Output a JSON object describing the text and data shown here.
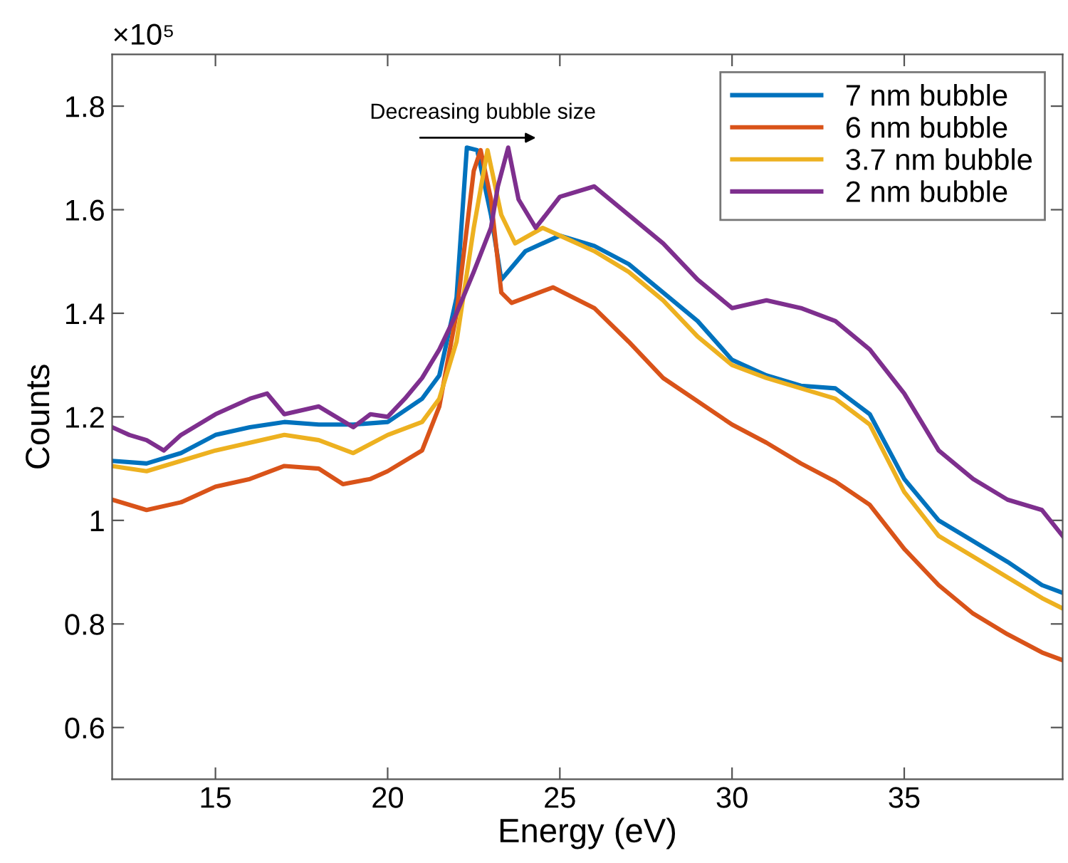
{
  "chart_data": {
    "type": "line",
    "xlabel": "Energy (eV)",
    "ylabel": "Counts",
    "xlim": [
      12,
      39.6
    ],
    "ylim": [
      0.5,
      1.9
    ],
    "xticks": [
      15,
      20,
      25,
      30,
      35
    ],
    "yticks": [
      0.6,
      0.8,
      1,
      1.2,
      1.4,
      1.6,
      1.8
    ],
    "grid": false,
    "legend": "top right",
    "marker": "none",
    "line_style": "solid",
    "annotations": [
      "×10⁵",
      "Decreasing bubble size"
    ],
    "series": [
      {
        "name": "7 nm bubble",
        "color": "#0072bd",
        "x": [
          12,
          13,
          14,
          15,
          16,
          17,
          18,
          19,
          20,
          21,
          21.5,
          22,
          22.3,
          22.6,
          23,
          23.3,
          24,
          25,
          26,
          27,
          28,
          29,
          30,
          31,
          32,
          33,
          34,
          35,
          36,
          37,
          38,
          39,
          39.6
        ],
        "values": [
          1.115,
          1.11,
          1.13,
          1.165,
          1.18,
          1.19,
          1.185,
          1.185,
          1.19,
          1.235,
          1.28,
          1.43,
          1.72,
          1.715,
          1.59,
          1.465,
          1.52,
          1.55,
          1.53,
          1.495,
          1.44,
          1.385,
          1.31,
          1.28,
          1.26,
          1.255,
          1.205,
          1.08,
          1.0,
          0.96,
          0.92,
          0.875,
          0.86
        ]
      },
      {
        "name": "6 nm bubble",
        "color": "#d95319",
        "x": [
          12,
          13,
          14,
          15,
          16,
          17,
          18,
          18.7,
          19.5,
          20,
          21,
          21.5,
          22,
          22.5,
          22.7,
          23,
          23.3,
          23.6,
          24,
          24.8,
          26,
          27,
          28,
          29,
          30,
          31,
          32,
          33,
          34,
          35,
          36,
          37,
          38,
          39,
          39.6
        ],
        "values": [
          1.04,
          1.02,
          1.035,
          1.065,
          1.08,
          1.105,
          1.1,
          1.07,
          1.08,
          1.095,
          1.135,
          1.22,
          1.4,
          1.675,
          1.715,
          1.62,
          1.44,
          1.42,
          1.43,
          1.45,
          1.41,
          1.345,
          1.275,
          1.23,
          1.185,
          1.15,
          1.11,
          1.075,
          1.03,
          0.945,
          0.875,
          0.82,
          0.78,
          0.745,
          0.73
        ]
      },
      {
        "name": "3.7 nm bubble",
        "color": "#edb120",
        "x": [
          12,
          13,
          14,
          15,
          16,
          17,
          18,
          19,
          20,
          21,
          21.5,
          22,
          22.5,
          22.9,
          23.3,
          23.7,
          24.5,
          25,
          26,
          27,
          28,
          29,
          30,
          31,
          32,
          33,
          34,
          35,
          36,
          37,
          38,
          39,
          39.6
        ],
        "values": [
          1.105,
          1.095,
          1.115,
          1.135,
          1.15,
          1.165,
          1.155,
          1.13,
          1.165,
          1.19,
          1.235,
          1.345,
          1.565,
          1.715,
          1.59,
          1.535,
          1.565,
          1.55,
          1.52,
          1.48,
          1.425,
          1.355,
          1.3,
          1.275,
          1.255,
          1.235,
          1.185,
          1.055,
          0.97,
          0.93,
          0.89,
          0.85,
          0.83
        ]
      },
      {
        "name": "2 nm bubble",
        "color": "#7e2f8e",
        "x": [
          12,
          12.5,
          13,
          13.5,
          14,
          15,
          16,
          16.5,
          17,
          18,
          19,
          19.5,
          20,
          20.5,
          21,
          21.5,
          22,
          22.5,
          23,
          23.2,
          23.5,
          23.8,
          24.3,
          25,
          26,
          27,
          28,
          29,
          30,
          31,
          32,
          33,
          34,
          35,
          36,
          37,
          38,
          39,
          39.6
        ],
        "values": [
          1.18,
          1.165,
          1.155,
          1.135,
          1.165,
          1.205,
          1.235,
          1.245,
          1.205,
          1.22,
          1.18,
          1.205,
          1.2,
          1.235,
          1.275,
          1.33,
          1.4,
          1.48,
          1.565,
          1.645,
          1.72,
          1.62,
          1.565,
          1.625,
          1.645,
          1.59,
          1.535,
          1.465,
          1.41,
          1.425,
          1.41,
          1.385,
          1.33,
          1.245,
          1.135,
          1.08,
          1.04,
          1.02,
          0.97
        ]
      }
    ]
  }
}
